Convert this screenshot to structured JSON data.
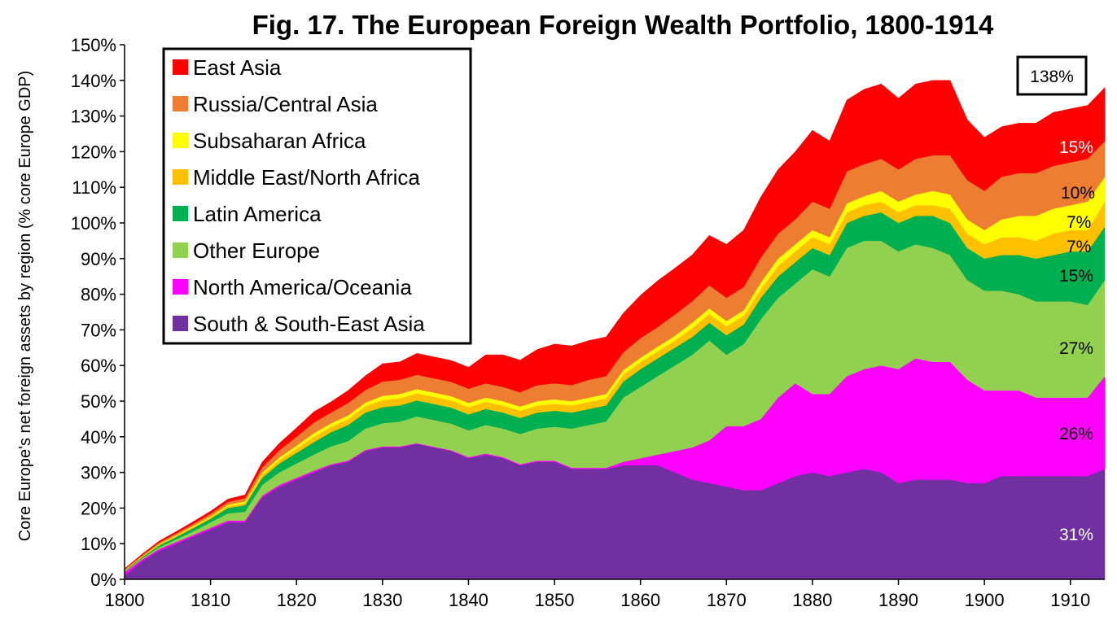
{
  "chart_data": {
    "type": "area",
    "stacked": true,
    "title": "Fig. 17. The European Foreign Wealth Portfolio, 1800-1914",
    "ylabel": "Core Europe's net foreign assets  by region (% core Europe GDP)",
    "xlabel": "",
    "xlim": [
      1800,
      1914
    ],
    "ylim": [
      0,
      150
    ],
    "x_ticks": [
      "1800",
      "1810",
      "1820",
      "1830",
      "1840",
      "1850",
      "1860",
      "1870",
      "1880",
      "1890",
      "1900",
      "1910"
    ],
    "y_ticks": [
      "0%",
      "10%",
      "20%",
      "30%",
      "40%",
      "50%",
      "60%",
      "70%",
      "80%",
      "90%",
      "100%",
      "110%",
      "120%",
      "130%",
      "140%",
      "150%"
    ],
    "grid": false,
    "legend_position": "top-left",
    "x": [
      1800,
      1802,
      1804,
      1806,
      1808,
      1810,
      1812,
      1814,
      1816,
      1818,
      1820,
      1822,
      1824,
      1826,
      1828,
      1830,
      1832,
      1834,
      1836,
      1838,
      1840,
      1842,
      1844,
      1846,
      1848,
      1850,
      1852,
      1854,
      1856,
      1858,
      1860,
      1862,
      1864,
      1866,
      1868,
      1870,
      1872,
      1874,
      1876,
      1878,
      1880,
      1882,
      1884,
      1886,
      1888,
      1890,
      1892,
      1894,
      1896,
      1898,
      1900,
      1902,
      1904,
      1906,
      1908,
      1910,
      1912,
      1914
    ],
    "series": [
      {
        "name": "South & South-East Asia",
        "color": "#7030a0",
        "values": [
          1,
          5,
          8,
          10,
          12,
          14,
          16,
          16,
          23,
          26,
          28,
          30,
          32,
          33,
          36,
          37,
          37,
          38,
          37,
          36,
          34,
          35,
          34,
          32,
          33,
          33,
          31,
          31,
          31,
          32,
          32,
          32,
          30,
          28,
          27,
          26,
          25,
          25,
          27,
          29,
          30,
          29,
          30,
          31,
          30,
          27,
          28,
          28,
          28,
          27,
          27,
          29,
          29,
          29,
          29,
          29,
          29,
          31
        ]
      },
      {
        "name": "North America/Oceania",
        "color": "#ff00ff",
        "values": [
          1,
          0.5,
          0.5,
          0.5,
          0.5,
          0.5,
          0.5,
          0.5,
          0.5,
          0.5,
          0.5,
          0.5,
          0.3,
          0.3,
          0.3,
          0.3,
          0.3,
          0.2,
          0.2,
          0.2,
          0.3,
          0.3,
          0.3,
          0.3,
          0.3,
          0.3,
          0.3,
          0.3,
          0.3,
          1,
          2,
          3,
          6,
          9,
          12,
          17,
          18,
          20,
          24,
          26,
          22,
          23,
          27,
          28,
          30,
          32,
          34,
          33,
          33,
          29,
          26,
          24,
          24,
          22,
          22,
          22,
          22,
          26
        ]
      },
      {
        "name": "Other Europe",
        "color": "#92d050",
        "values": [
          0.2,
          0.3,
          0.5,
          0.7,
          1,
          1.5,
          2,
          2.5,
          3,
          3.5,
          4,
          4.5,
          5,
          5.5,
          6,
          6.5,
          7,
          7.5,
          7.5,
          7.5,
          7.5,
          8,
          8,
          8.5,
          9,
          9.5,
          11,
          12,
          13,
          18,
          20,
          22,
          24,
          26,
          28,
          20,
          23,
          28,
          28,
          28,
          35,
          33,
          36,
          36,
          35,
          33,
          32,
          32,
          30,
          28,
          28,
          28,
          27,
          27,
          27,
          27,
          26,
          27
        ]
      },
      {
        "name": "Latin America",
        "color": "#00b050",
        "values": [
          0.2,
          0.3,
          0.5,
          0.7,
          0.9,
          1,
          1.5,
          1.8,
          2,
          2.5,
          3,
          3.5,
          4,
          4.5,
          4.5,
          4.5,
          4.5,
          4.5,
          4.5,
          4.5,
          4.5,
          4.5,
          4.5,
          4.5,
          4.5,
          4.5,
          4.5,
          4.5,
          4.5,
          4.5,
          5,
          5,
          5,
          5,
          5,
          5.5,
          5.5,
          6,
          6,
          6,
          6,
          6,
          7,
          7,
          8,
          8,
          8,
          9,
          9,
          9,
          9,
          10,
          11,
          12,
          13,
          14,
          15,
          15
        ]
      },
      {
        "name": "Middle East/North Africa",
        "color": "#ffc000",
        "values": [
          0.1,
          0.2,
          0.2,
          0.3,
          0.3,
          0.4,
          0.5,
          0.6,
          0.8,
          1,
          1.2,
          1.5,
          1.5,
          1.7,
          1.8,
          2,
          2,
          2,
          2,
          2,
          2,
          2,
          2,
          2,
          2,
          2,
          2,
          2,
          2,
          2,
          2,
          2,
          2,
          2.5,
          2.5,
          2.5,
          2.5,
          2.5,
          3,
          3,
          3,
          3,
          3,
          3,
          3,
          3,
          3,
          3,
          4,
          4,
          4,
          5,
          5,
          5,
          6,
          6,
          6,
          7
        ]
      },
      {
        "name": "Subsaharan Africa",
        "color": "#ffff00",
        "values": [
          0.1,
          0.1,
          0.2,
          0.2,
          0.3,
          0.3,
          0.4,
          0.5,
          0.6,
          0.7,
          0.8,
          1,
          1,
          1,
          1,
          1.2,
          1.2,
          1.2,
          1.2,
          1.2,
          1.2,
          1.2,
          1.2,
          1.2,
          1.2,
          1.2,
          1.2,
          1.2,
          1.2,
          1.2,
          1.2,
          1.3,
          1.3,
          1.5,
          1.5,
          1.5,
          1.5,
          1.8,
          2,
          2,
          2,
          2,
          2.5,
          2.5,
          3,
          3,
          3,
          4,
          4,
          4,
          4,
          5,
          6,
          7,
          7,
          7,
          8,
          7
        ]
      },
      {
        "name": "Russia/Central Asia",
        "color": "#ed7d31",
        "values": [
          0.2,
          0.3,
          0.4,
          0.5,
          0.6,
          0.7,
          0.8,
          0.9,
          1.5,
          2,
          2.5,
          3,
          3,
          3.5,
          3.5,
          4,
          4,
          4,
          4,
          4,
          4,
          4,
          4,
          4,
          4.5,
          4.5,
          4.5,
          5,
          5,
          5,
          5.5,
          5.5,
          6,
          6,
          6.5,
          6.5,
          6.5,
          7,
          7,
          7,
          8,
          8,
          9,
          9,
          9,
          9,
          10,
          10,
          11,
          11,
          11,
          12,
          12,
          12,
          12,
          12,
          12,
          10
        ]
      },
      {
        "name": "East Asia",
        "color": "#ff0000",
        "values": [
          0.2,
          0.3,
          0.4,
          0.5,
          0.6,
          0.7,
          0.8,
          0.9,
          1.5,
          2,
          2.5,
          3,
          3,
          3.5,
          4,
          5,
          5,
          6,
          6,
          6,
          6,
          8,
          9,
          9,
          10,
          11,
          11,
          11,
          11,
          11,
          12,
          13,
          13,
          13,
          14,
          15,
          16,
          17,
          18,
          19,
          20,
          19,
          20,
          21,
          21,
          20,
          21,
          21,
          21,
          17,
          15,
          14,
          14,
          14,
          15,
          15,
          15,
          15
        ]
      }
    ],
    "annotations": {
      "total": "138%",
      "east_asia": "15%",
      "russia": "10%",
      "africa": "7%",
      "mena": "7%",
      "latam": "15%",
      "other_europe": "27%",
      "north_america": "26%",
      "south_asia": "31%"
    }
  }
}
